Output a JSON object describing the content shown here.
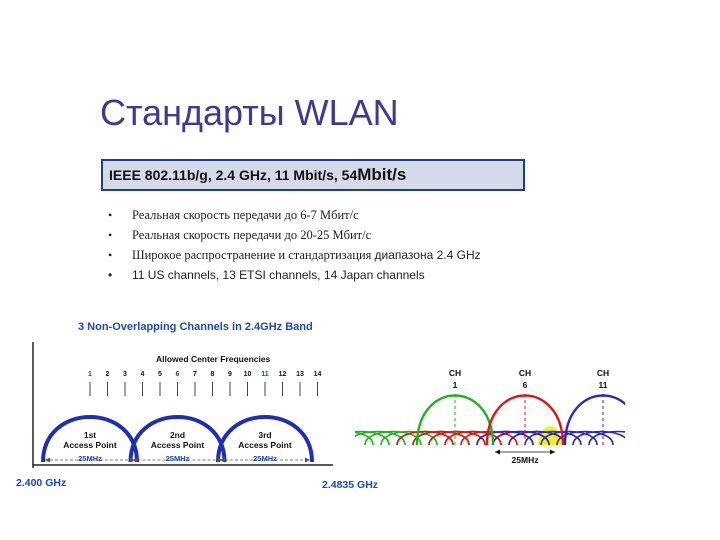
{
  "slide": {
    "title": "Стандарты WLAN",
    "banner": {
      "text": "IEEE 802.11b/g, 2.4 GHz, 11 Mbit/s, 54 ",
      "text_big": "Mbit/s"
    },
    "bullets": [
      {
        "text": "Реальная скорость передачи до 6-7 Мбит/с",
        "suffix": ""
      },
      {
        "text": "Реальная скорость передачи до 20-25 Мбит/с",
        "suffix": ""
      },
      {
        "text": "Широкое распространение и стандартизация ",
        "suffix": "диапазона 2.4 GHz"
      },
      {
        "text": "11 US channels, 13 ETSI channels, 14 Japan channels",
        "suffix": ""
      }
    ]
  },
  "left_figure": {
    "title": "3 Non-Overlapping Channels in 2.4GHz Band",
    "allowed_label": "Allowed Center Frequencies",
    "channels": [
      "1",
      "2",
      "3",
      "4",
      "5",
      "6",
      "7",
      "8",
      "9",
      "10",
      "11",
      "12",
      "13",
      "14"
    ],
    "highlighted_channels": [
      "1",
      "6",
      "11"
    ],
    "access_points": [
      {
        "line1": "1st",
        "line2": "Access Point"
      },
      {
        "line1": "2nd",
        "line2": "Access Point"
      },
      {
        "line1": "3rd",
        "line2": "Access Point"
      }
    ],
    "width_label": "25MHz",
    "freq_start": "2.400 GHz",
    "freq_end": "2.4835 GHz",
    "colors": {
      "title": "#1f4aa8",
      "arc": "#1f2fb0",
      "highlight": "#1f4aa8",
      "freq": "#1f4aa8"
    }
  },
  "right_figure": {
    "channel_labels": [
      {
        "ch": "CH",
        "num": "1"
      },
      {
        "ch": "CH",
        "num": "6"
      },
      {
        "ch": "CH",
        "num": "11"
      }
    ],
    "width_label": "25MHz",
    "colors": {
      "green": "#22b022",
      "red": "#d81818",
      "blue": "#2a2ab8",
      "overlap": "#f2f000"
    }
  }
}
